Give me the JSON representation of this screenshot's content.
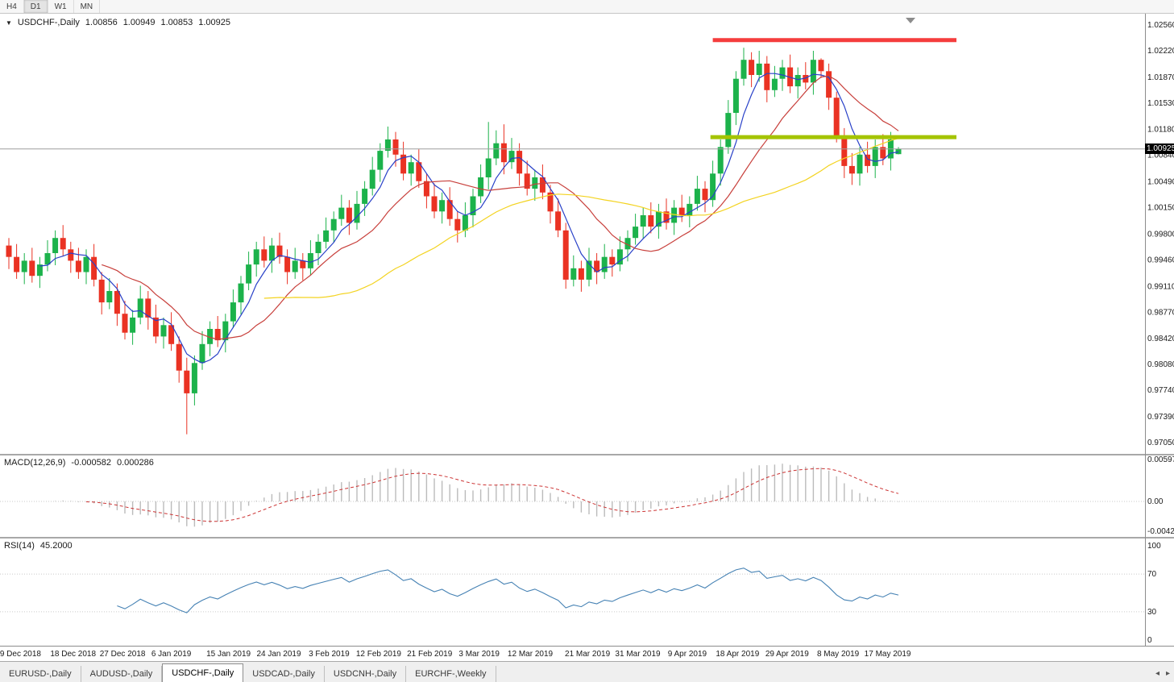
{
  "toolbar": {
    "timeframes": [
      "H4",
      "D1",
      "W1",
      "MN"
    ],
    "active_timeframe": "D1"
  },
  "main_chart": {
    "legend": {
      "collapse_icon": "▼",
      "symbol": "USDCHF-,Daily",
      "open": "1.00856",
      "high": "1.00949",
      "low": "1.00853",
      "close": "1.00925"
    },
    "price_scale": {
      "current": "1.00925"
    }
  },
  "macd": {
    "label": "MACD(12,26,9)",
    "value": "-0.000582",
    "signal_value": "0.000286"
  },
  "rsi": {
    "label": "RSI(14)",
    "value": "45.2000"
  },
  "tabs": {
    "items": [
      {
        "label": "EURUSD-,Daily",
        "active": false
      },
      {
        "label": "AUDUSD-,Daily",
        "active": false
      },
      {
        "label": "USDCHF-,Daily",
        "active": true
      },
      {
        "label": "USDCAD-,Daily",
        "active": false
      },
      {
        "label": "USDCNH-,Daily",
        "active": false
      },
      {
        "label": "EURCHF-,Weekly",
        "active": false
      }
    ],
    "scroll_left": "◂",
    "scroll_right": "▸"
  },
  "colors": {
    "candle_up": "#1cb24b",
    "candle_down": "#ea3223",
    "ma_fast": "#2840c8",
    "ma_mid": "#c8403c",
    "ma_slow": "#f3d320",
    "resistance": "#f53d3d",
    "support": "#a4c400",
    "price_line": "#9e9e9e",
    "price_tag_bg": "#000000",
    "macd_histogram": "#bbbbbb",
    "macd_signal": "#cc3333",
    "rsi_line": "#4682b4",
    "grid_dotted": "#c9c9c9",
    "pane_border": "#8c8c8c"
  },
  "chart_data": {
    "type": "candlestick",
    "title": "USDCHF-,Daily",
    "symbol": "USDCHF",
    "timeframe": "Daily",
    "y_axis": {
      "max": 1.0256,
      "min": 0.9705,
      "labels": [
        "1.02560",
        "1.02220",
        "1.01870",
        "1.01530",
        "1.01180",
        "1.00840",
        "1.00490",
        "1.00150",
        "0.99800",
        "0.99460",
        "0.99110",
        "0.98770",
        "0.98420",
        "0.98080",
        "0.97740",
        "0.97390",
        "0.97050"
      ]
    },
    "x_axis": {
      "labels": [
        {
          "text": "9 Dec 2018",
          "i": 1.5
        },
        {
          "text": "18 Dec 2018",
          "i": 8.3
        },
        {
          "text": "27 Dec 2018",
          "i": 14.7
        },
        {
          "text": "6 Jan 2019",
          "i": 21
        },
        {
          "text": "15 Jan 2019",
          "i": 28.4
        },
        {
          "text": "24 Jan 2019",
          "i": 34.9
        },
        {
          "text": "3 Feb 2019",
          "i": 41.4
        },
        {
          "text": "12 Feb 2019",
          "i": 47.8
        },
        {
          "text": "21 Feb 2019",
          "i": 54.4
        },
        {
          "text": "3 Mar 2019",
          "i": 60.8
        },
        {
          "text": "12 Mar 2019",
          "i": 67.4
        },
        {
          "text": "21 Mar 2019",
          "i": 74.8
        },
        {
          "text": "31 Mar 2019",
          "i": 81.3
        },
        {
          "text": "9 Apr 2019",
          "i": 87.7
        },
        {
          "text": "18 Apr 2019",
          "i": 94.2
        },
        {
          "text": "29 Apr 2019",
          "i": 100.6
        },
        {
          "text": "8 May 2019",
          "i": 107.2
        },
        {
          "text": "17 May 2019",
          "i": 113.6
        }
      ]
    },
    "candles": [
      [
        0.9965,
        0.9975,
        0.9934,
        0.995
      ],
      [
        0.995,
        0.9967,
        0.9921,
        0.993
      ],
      [
        0.993,
        0.9955,
        0.9914,
        0.9945
      ],
      [
        0.9945,
        0.9962,
        0.9916,
        0.9925
      ],
      [
        0.9925,
        0.995,
        0.9909,
        0.994
      ],
      [
        0.994,
        0.9972,
        0.9931,
        0.9955
      ],
      [
        0.9955,
        0.9985,
        0.9939,
        0.9975
      ],
      [
        0.9975,
        0.9992,
        0.9951,
        0.996
      ],
      [
        0.996,
        0.997,
        0.9929,
        0.9945
      ],
      [
        0.9945,
        0.9962,
        0.9921,
        0.993
      ],
      [
        0.993,
        0.996,
        0.9914,
        0.995
      ],
      [
        0.995,
        0.9967,
        0.9911,
        0.992
      ],
      [
        0.992,
        0.993,
        0.9874,
        0.989
      ],
      [
        0.989,
        0.9922,
        0.9881,
        0.9905
      ],
      [
        0.9905,
        0.9915,
        0.9859,
        0.9875
      ],
      [
        0.9875,
        0.9892,
        0.9841,
        0.985
      ],
      [
        0.985,
        0.988,
        0.9834,
        0.987
      ],
      [
        0.987,
        0.9912,
        0.9861,
        0.9895
      ],
      [
        0.9895,
        0.9905,
        0.9854,
        0.987
      ],
      [
        0.987,
        0.9887,
        0.9836,
        0.9845
      ],
      [
        0.9845,
        0.987,
        0.9829,
        0.986
      ],
      [
        0.986,
        0.9877,
        0.9826,
        0.9835
      ],
      [
        0.9835,
        0.9845,
        0.9784,
        0.98
      ],
      [
        0.98,
        0.9817,
        0.9716,
        0.977
      ],
      [
        0.977,
        0.982,
        0.9754,
        0.981
      ],
      [
        0.981,
        0.9852,
        0.9801,
        0.9835
      ],
      [
        0.9835,
        0.9865,
        0.9819,
        0.9855
      ],
      [
        0.9855,
        0.9872,
        0.9831,
        0.984
      ],
      [
        0.984,
        0.9875,
        0.9824,
        0.9865
      ],
      [
        0.9865,
        0.9907,
        0.9856,
        0.989
      ],
      [
        0.989,
        0.9925,
        0.9874,
        0.9915
      ],
      [
        0.9915,
        0.9957,
        0.9906,
        0.994
      ],
      [
        0.994,
        0.997,
        0.9924,
        0.996
      ],
      [
        0.996,
        0.9977,
        0.9936,
        0.9945
      ],
      [
        0.9945,
        0.9975,
        0.9929,
        0.9965
      ],
      [
        0.9965,
        0.9982,
        0.9941,
        0.995
      ],
      [
        0.995,
        0.996,
        0.9914,
        0.993
      ],
      [
        0.993,
        0.9962,
        0.9921,
        0.9945
      ],
      [
        0.9945,
        0.9955,
        0.9919,
        0.9935
      ],
      [
        0.9935,
        0.9972,
        0.9926,
        0.9955
      ],
      [
        0.9955,
        0.998,
        0.9939,
        0.997
      ],
      [
        0.997,
        1.0002,
        0.9961,
        0.9985
      ],
      [
        0.9985,
        1.001,
        0.9969,
        1.0
      ],
      [
        1.0,
        1.0032,
        0.9991,
        1.0015
      ],
      [
        1.0015,
        1.0025,
        0.9979,
        0.9995
      ],
      [
        0.9995,
        1.0037,
        0.9986,
        1.002
      ],
      [
        1.002,
        1.005,
        1.0004,
        1.004
      ],
      [
        1.004,
        1.0082,
        1.0031,
        1.0065
      ],
      [
        1.0065,
        1.01,
        1.0049,
        1.009
      ],
      [
        1.009,
        1.0122,
        1.0081,
        1.0105
      ],
      [
        1.0105,
        1.0115,
        1.0069,
        1.0085
      ],
      [
        1.0085,
        1.0102,
        1.0051,
        1.006
      ],
      [
        1.006,
        1.0085,
        1.0044,
        1.0075
      ],
      [
        1.0075,
        1.0092,
        1.0041,
        1.005
      ],
      [
        1.005,
        1.006,
        1.0014,
        1.003
      ],
      [
        1.003,
        1.0047,
        1.0001,
        1.001
      ],
      [
        1.001,
        1.0035,
        0.9994,
        1.0025
      ],
      [
        1.0025,
        1.0042,
        0.9991,
        1.0
      ],
      [
        1.0,
        1.001,
        0.9969,
        0.9985
      ],
      [
        0.9985,
        1.0022,
        0.9976,
        1.0005
      ],
      [
        1.0005,
        1.004,
        0.9989,
        1.003
      ],
      [
        1.003,
        1.0072,
        1.0021,
        1.0055
      ],
      [
        1.0055,
        1.0128,
        1.0039,
        1.008
      ],
      [
        1.008,
        1.0117,
        1.0071,
        1.01
      ],
      [
        1.01,
        1.0125,
        1.0059,
        1.0075
      ],
      [
        1.0075,
        1.0107,
        1.0066,
        1.009
      ],
      [
        1.009,
        1.01,
        1.0044,
        1.006
      ],
      [
        1.006,
        1.0077,
        1.0031,
        1.004
      ],
      [
        1.004,
        1.0065,
        1.0024,
        1.0055
      ],
      [
        1.0055,
        1.0072,
        1.0026,
        1.0035
      ],
      [
        1.0035,
        1.0045,
        0.9994,
        1.001
      ],
      [
        1.001,
        1.0027,
        0.9976,
        0.9985
      ],
      [
        0.9985,
        0.9995,
        0.9908,
        0.992
      ],
      [
        0.992,
        0.9952,
        0.9911,
        0.9935
      ],
      [
        0.9935,
        0.9945,
        0.9904,
        0.992
      ],
      [
        0.992,
        0.9962,
        0.9911,
        0.9945
      ],
      [
        0.9945,
        0.9955,
        0.9914,
        0.993
      ],
      [
        0.993,
        0.9967,
        0.9921,
        0.995
      ],
      [
        0.995,
        0.996,
        0.9924,
        0.994
      ],
      [
        0.994,
        0.9977,
        0.9931,
        0.996
      ],
      [
        0.996,
        0.9985,
        0.9944,
        0.9975
      ],
      [
        0.9975,
        1.0007,
        0.9966,
        0.999
      ],
      [
        0.999,
        1.0015,
        0.9974,
        1.0005
      ],
      [
        1.0005,
        1.0022,
        0.9981,
        0.999
      ],
      [
        0.999,
        1.002,
        0.9974,
        1.001
      ],
      [
        1.001,
        1.0027,
        0.9986,
        0.9995
      ],
      [
        0.9995,
        1.0025,
        0.9979,
        1.0015
      ],
      [
        1.0015,
        1.0032,
        0.9996,
        1.0005
      ],
      [
        1.0005,
        1.003,
        0.9989,
        1.002
      ],
      [
        1.002,
        1.0057,
        1.0011,
        1.004
      ],
      [
        1.004,
        1.005,
        1.0009,
        1.0025
      ],
      [
        1.0025,
        1.0077,
        1.0016,
        1.006
      ],
      [
        1.006,
        1.0105,
        1.0044,
        1.0095
      ],
      [
        1.0095,
        1.0157,
        1.0086,
        1.014
      ],
      [
        1.014,
        1.0195,
        1.0124,
        1.0185
      ],
      [
        1.0185,
        1.0226,
        1.0176,
        1.021
      ],
      [
        1.021,
        1.022,
        1.0174,
        1.019
      ],
      [
        1.019,
        1.0222,
        1.0181,
        1.0205
      ],
      [
        1.0205,
        1.0215,
        1.0154,
        1.017
      ],
      [
        1.017,
        1.0202,
        1.0161,
        1.0185
      ],
      [
        1.0185,
        1.021,
        1.0169,
        1.02
      ],
      [
        1.02,
        1.0217,
        1.0166,
        1.0175
      ],
      [
        1.0175,
        1.02,
        1.0159,
        1.019
      ],
      [
        1.019,
        1.0207,
        1.0171,
        1.018
      ],
      [
        1.018,
        1.0222,
        1.0164,
        1.021
      ],
      [
        1.021,
        1.0212,
        1.0186,
        1.0195
      ],
      [
        1.0195,
        1.0205,
        1.0144,
        1.016
      ],
      [
        1.016,
        1.0168,
        1.0101,
        1.011
      ],
      [
        1.011,
        1.012,
        1.0054,
        1.007
      ],
      [
        1.007,
        1.0087,
        1.0045,
        1.006
      ],
      [
        1.006,
        1.0095,
        1.0044,
        1.0085
      ],
      [
        1.0085,
        1.0102,
        1.0061,
        1.007
      ],
      [
        1.007,
        1.0105,
        1.0054,
        1.0095
      ],
      [
        1.0095,
        1.0112,
        1.0071,
        1.008
      ],
      [
        1.008,
        1.0115,
        1.0064,
        1.0105
      ],
      [
        1.00856,
        1.00949,
        1.00853,
        1.00925
      ]
    ],
    "overlays": {
      "moving_averages": [
        {
          "name": "ma-fast",
          "period": 5,
          "color": "#2840c8"
        },
        {
          "name": "ma-mid",
          "period": 13,
          "color": "#c8403c"
        },
        {
          "name": "ma-slow",
          "period": 34,
          "color": "#f3d320"
        }
      ],
      "hlines": [
        {
          "name": "resistance-line",
          "price": 1.0236,
          "from_index": 91,
          "to_index": 122.5,
          "color": "#f53d3d",
          "width": 5
        },
        {
          "name": "support-line",
          "price": 1.0108,
          "from_index": 90.7,
          "to_index": 122.5,
          "color": "#a4c400",
          "width": 5
        }
      ],
      "current_price": 1.00925
    },
    "indicators": {
      "macd": {
        "label": "MACD(12,26,9)",
        "params": [
          12,
          26,
          9
        ],
        "value": -0.000582,
        "signal": 0.000286,
        "scale_labels": [
          "0.00597",
          "0.00",
          "-0.00424"
        ]
      },
      "rsi": {
        "label": "RSI(14)",
        "period": 14,
        "value": 45.2,
        "scale_labels": [
          "100",
          "70",
          "30",
          "0"
        ],
        "levels": [
          70,
          30
        ]
      }
    }
  }
}
